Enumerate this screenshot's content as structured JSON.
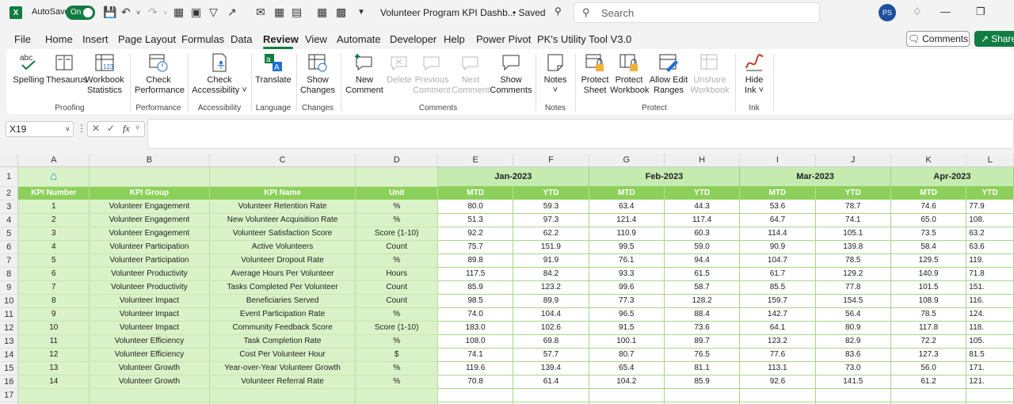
{
  "titlebar": {
    "autosave_label": "AutoSave",
    "autosave_state": "On",
    "doc_title": "Volunteer Program KPI Dashb...",
    "saved_status": "• Saved",
    "search_placeholder": "Search",
    "user_initials": "PS"
  },
  "menu": {
    "tabs": [
      "File",
      "Home",
      "Insert",
      "Page Layout",
      "Formulas",
      "Data",
      "Review",
      "View",
      "Automate",
      "Developer",
      "Help",
      "Power Pivot",
      "PK's Utility Tool V3.0"
    ],
    "active": "Review",
    "comments_button": "Comments",
    "share_button": "Share"
  },
  "ribbon": {
    "spelling": "Spelling",
    "thesaurus": "Thesaurus",
    "workbook_stats_1": "Workbook",
    "workbook_stats_2": "Statistics",
    "proofing": "Proofing",
    "check_perf_1": "Check",
    "check_perf_2": "Performance",
    "performance": "Performance",
    "check_acc_1": "Check",
    "check_acc_2": "Accessibility ˅",
    "accessibility": "Accessibility",
    "translate": "Translate",
    "language": "Language",
    "show_changes_1": "Show",
    "show_changes_2": "Changes",
    "changes": "Changes",
    "new_comment_1": "New",
    "new_comment_2": "Comment",
    "delete": "Delete",
    "previous_1": "Previous",
    "previous_2": "Comment",
    "next_1": "Next",
    "next_2": "Comment",
    "show_comments_1": "Show",
    "show_comments_2": "Comments",
    "comments_group": "Comments",
    "notes": "Notes",
    "notes_group": "Notes",
    "protect_sheet_1": "Protect",
    "protect_sheet_2": "Sheet",
    "protect_wb_1": "Protect",
    "protect_wb_2": "Workbook",
    "allow_edit_1": "Allow Edit",
    "allow_edit_2": "Ranges",
    "unshare_1": "Unshare",
    "unshare_2": "Workbook",
    "protect_group": "Protect",
    "hide_ink_1": "Hide",
    "hide_ink_2": "Ink ˅",
    "ink_group": "Ink"
  },
  "formula_bar": {
    "name_box": "X19",
    "fx": "fx",
    "content": ""
  },
  "sheet": {
    "columns": [
      "A",
      "B",
      "C",
      "D",
      "E",
      "F",
      "G",
      "H",
      "I",
      "J",
      "K",
      "L"
    ],
    "months": [
      "Jan-2023",
      "Feb-2023",
      "Mar-2023",
      "Apr-2023"
    ],
    "headers": [
      "KPI Number",
      "KPI Group",
      "KPI Name",
      "Unit",
      "MTD",
      "YTD",
      "MTD",
      "YTD",
      "MTD",
      "YTD",
      "MTD",
      "YTD"
    ],
    "rows": [
      [
        "1",
        "Volunteer Engagement",
        "Volunteer Retention Rate",
        "%",
        "80.0",
        "59.3",
        "63.4",
        "44.3",
        "53.6",
        "78.7",
        "74.6",
        "77.9"
      ],
      [
        "2",
        "Volunteer Engagement",
        "New Volunteer Acquisition Rate",
        "%",
        "51.3",
        "97.3",
        "121.4",
        "117.4",
        "64.7",
        "74.1",
        "65.0",
        "108."
      ],
      [
        "3",
        "Volunteer Engagement",
        "Volunteer Satisfaction Score",
        "Score (1-10)",
        "92.2",
        "62.2",
        "110.9",
        "60.3",
        "114.4",
        "105.1",
        "73.5",
        "63.2"
      ],
      [
        "4",
        "Volunteer Participation",
        "Active Volunteers",
        "Count",
        "75.7",
        "151.9",
        "99.5",
        "59.0",
        "90.9",
        "139.8",
        "58.4",
        "63.6"
      ],
      [
        "5",
        "Volunteer Participation",
        "Volunteer Dropout Rate",
        "%",
        "89.8",
        "91.9",
        "76.1",
        "94.4",
        "104.7",
        "78.5",
        "129.5",
        "119."
      ],
      [
        "6",
        "Volunteer Productivity",
        "Average Hours Per Volunteer",
        "Hours",
        "117.5",
        "84.2",
        "93.3",
        "61.5",
        "61.7",
        "129.2",
        "140.9",
        "71.8"
      ],
      [
        "7",
        "Volunteer Productivity",
        "Tasks Completed Per Volunteer",
        "Count",
        "85.9",
        "123.2",
        "99.6",
        "58.7",
        "85.5",
        "77.8",
        "101.5",
        "151."
      ],
      [
        "8",
        "Volunteer Impact",
        "Beneficiaries Served",
        "Count",
        "98.5",
        "89.9",
        "77.3",
        "128.2",
        "159.7",
        "154.5",
        "108.9",
        "116."
      ],
      [
        "9",
        "Volunteer Impact",
        "Event Participation Rate",
        "%",
        "74.0",
        "104.4",
        "96.5",
        "88.4",
        "142.7",
        "56.4",
        "78.5",
        "124."
      ],
      [
        "10",
        "Volunteer Impact",
        "Community Feedback Score",
        "Score (1-10)",
        "183.0",
        "102.6",
        "91.5",
        "73.6",
        "64.1",
        "80.9",
        "117.8",
        "118."
      ],
      [
        "11",
        "Volunteer Efficiency",
        "Task Completion Rate",
        "%",
        "108.0",
        "69.8",
        "100.1",
        "89.7",
        "123.2",
        "82.9",
        "72.2",
        "105."
      ],
      [
        "12",
        "Volunteer Efficiency",
        "Cost Per Volunteer Hour",
        "$",
        "74.1",
        "57.7",
        "80.7",
        "76.5",
        "77.6",
        "83.6",
        "127.3",
        "81.5"
      ],
      [
        "13",
        "Volunteer Growth",
        "Year-over-Year Volunteer Growth",
        "%",
        "119.6",
        "139.4",
        "65.4",
        "81.1",
        "113.1",
        "73.0",
        "56.0",
        "171."
      ],
      [
        "14",
        "Volunteer Growth",
        "Volunteer Referral Rate",
        "%",
        "70.8",
        "61.4",
        "104.2",
        "85.9",
        "92.6",
        "141.5",
        "61.2",
        "121."
      ]
    ]
  }
}
